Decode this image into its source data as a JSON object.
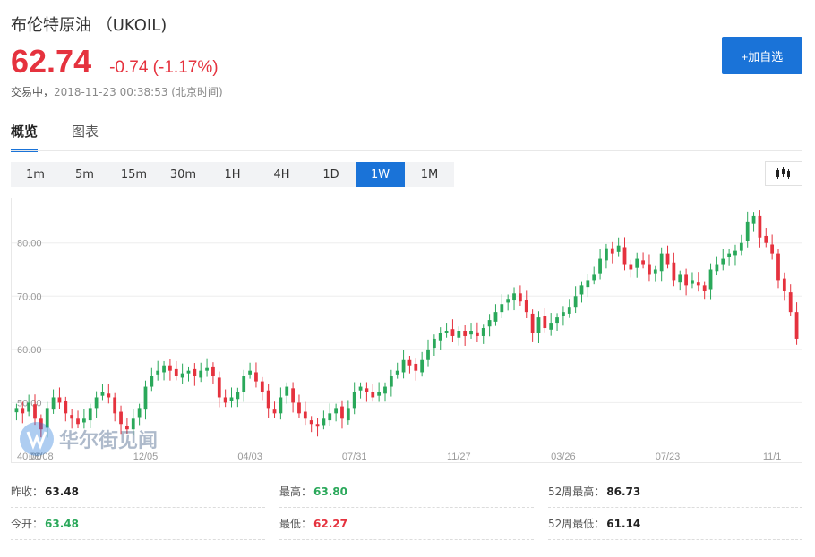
{
  "header": {
    "title": "布伦特原油 （UKOIL)",
    "price": "62.74",
    "change": "-0.74 (-1.17%)",
    "status": "交易中，",
    "timestamp": "2018-11-23 00:38:53 (北京时间)"
  },
  "add_button": "+加自选",
  "tabs": [
    {
      "label": "概览",
      "active": true
    },
    {
      "label": "图表",
      "active": false
    }
  ],
  "periods": [
    "1m",
    "5m",
    "15m",
    "30m",
    "1H",
    "4H",
    "1D",
    "1W",
    "1M"
  ],
  "active_period": "1W",
  "watermark": "华尔街见闻",
  "colors": {
    "up": "#2aa85a",
    "down": "#e5323e",
    "accent": "#1a73d8"
  },
  "stats": [
    [
      {
        "label": "昨收：",
        "value": "63.48",
        "tone": ""
      },
      {
        "label": "最高：",
        "value": "63.80",
        "tone": "up"
      },
      {
        "label": "52周最高：",
        "value": "86.73",
        "tone": ""
      }
    ],
    [
      {
        "label": "今开：",
        "value": "63.48",
        "tone": "up"
      },
      {
        "label": "最低：",
        "value": "62.27",
        "tone": "down"
      },
      {
        "label": "52周最低：",
        "value": "61.14",
        "tone": ""
      }
    ]
  ],
  "chart_data": {
    "type": "candlestick",
    "ylim": [
      40,
      87
    ],
    "y_ticks": [
      40,
      50,
      60,
      70,
      80
    ],
    "y_tick_labels": [
      "40.00",
      "50.00",
      "60.00",
      "70.00",
      "80.00"
    ],
    "x_ticks": [
      {
        "label": "08/08",
        "index": 4
      },
      {
        "label": "12/05",
        "index": 21
      },
      {
        "label": "04/03",
        "index": 38
      },
      {
        "label": "07/31",
        "index": 55
      },
      {
        "label": "11/27",
        "index": 72
      },
      {
        "label": "03/26",
        "index": 89
      },
      {
        "label": "07/23",
        "index": 106
      },
      {
        "label": "11/1",
        "index": 123
      }
    ],
    "grid": true,
    "closes": [
      49,
      48,
      50,
      47,
      45,
      49,
      51,
      50,
      48,
      47,
      46,
      47,
      49,
      51,
      52,
      51,
      48,
      46,
      45,
      47,
      49,
      53,
      55,
      56,
      57,
      56,
      55,
      55.5,
      56,
      55,
      56,
      56.5,
      55,
      51,
      50,
      51,
      52,
      55,
      56,
      54,
      52,
      49,
      48,
      51,
      53,
      50,
      48,
      47,
      46,
      45.5,
      47,
      48,
      49,
      47,
      49,
      52,
      53,
      52,
      51,
      52,
      53,
      55,
      56,
      58,
      57,
      56,
      58,
      60,
      62,
      63,
      63.5,
      62.5,
      63.5,
      62.5,
      63.5,
      62.5,
      64,
      65.5,
      67,
      68.5,
      69.5,
      70.5,
      69,
      67,
      63,
      66,
      64,
      65,
      66,
      67,
      68,
      70,
      72,
      73,
      74,
      77,
      79,
      78,
      79.5,
      76,
      75,
      77,
      76,
      74,
      75,
      78,
      76,
      73,
      74,
      72,
      73,
      72,
      71,
      75,
      76,
      77,
      78,
      78.5,
      80,
      84,
      85,
      81,
      80,
      78,
      73,
      71,
      67,
      62
    ]
  }
}
